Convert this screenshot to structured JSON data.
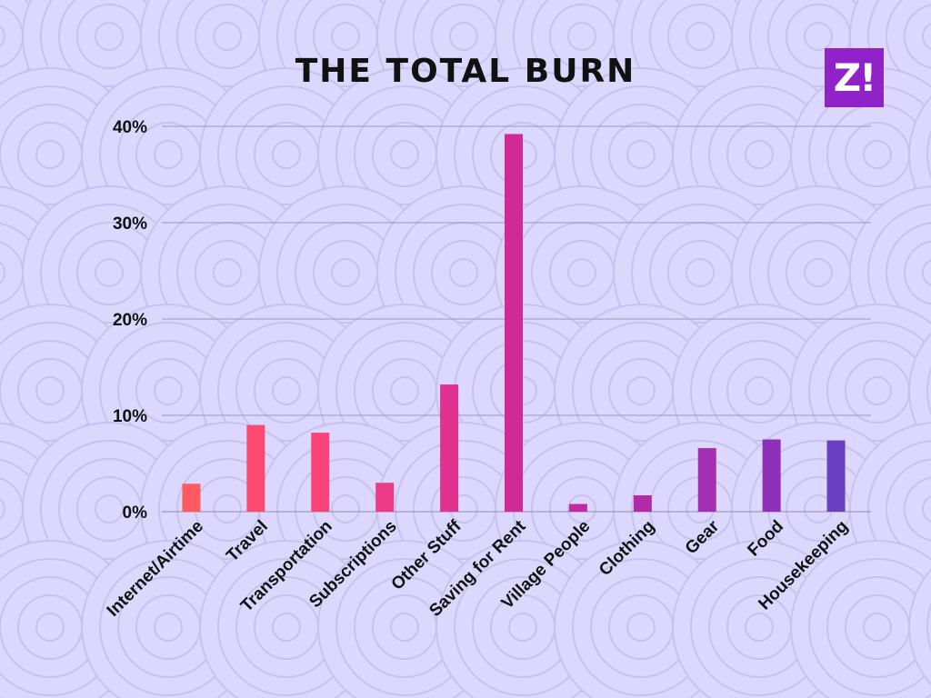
{
  "logo": {
    "text": "Z!",
    "color": "#8f22c8"
  },
  "chart_data": {
    "type": "bar",
    "title": "THE TOTAL BURN",
    "xlabel": "",
    "ylabel": "",
    "ylim": [
      0,
      40
    ],
    "yticks": [
      "0%",
      "10%",
      "20%",
      "30%",
      "40%"
    ],
    "grid": true,
    "categories": [
      "Internet/Airtime",
      "Travel",
      "Transportation",
      "Subscriptions",
      "Other Stuff",
      "Saving for Rent",
      "Village People",
      "Clothing",
      "Gear",
      "Food",
      "Housekeeping"
    ],
    "values": [
      2.9,
      9.0,
      8.2,
      3.0,
      13.2,
      39.2,
      0.8,
      1.7,
      6.6,
      7.5,
      7.4
    ],
    "colors": [
      "#ff5a5f",
      "#fc4a70",
      "#f8447a",
      "#ee3b88",
      "#e23290",
      "#d12995",
      "#c429a0",
      "#b22aa8",
      "#a42eb4",
      "#9030b8",
      "#6a3fc2"
    ]
  }
}
